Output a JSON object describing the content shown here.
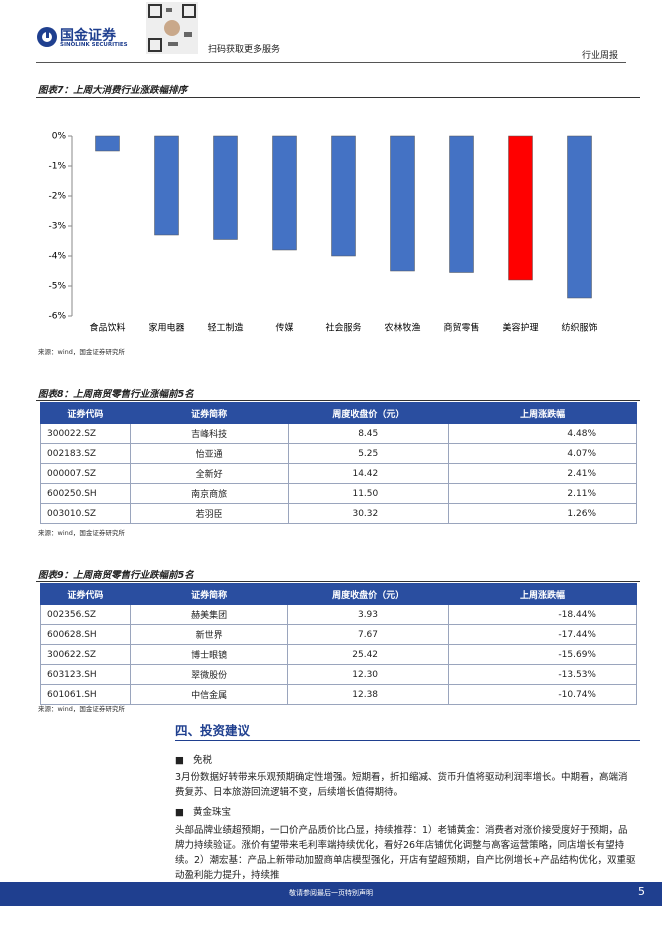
{
  "header": {
    "logo_cn": "国金证券",
    "logo_en": "SINOLINK SECURITIES",
    "qr_text": "扫码获取更多服务",
    "section": "行业周报"
  },
  "chart_data": {
    "type": "bar",
    "title": "图表7：上周大消费行业涨跌幅排序",
    "categories": [
      "食品饮料",
      "家用电器",
      "轻工制造",
      "传媒",
      "社会服务",
      "农林牧渔",
      "商贸零售",
      "美容护理",
      "纺织服饰"
    ],
    "values": [
      -0.5,
      -3.3,
      -3.45,
      -3.8,
      -4.0,
      -4.5,
      -4.55,
      -4.8,
      -5.4
    ],
    "colors": [
      "#4472c4",
      "#4472c4",
      "#4472c4",
      "#4472c4",
      "#4472c4",
      "#4472c4",
      "#4472c4",
      "#ff0000",
      "#4472c4"
    ],
    "ylim": [
      -6,
      0
    ],
    "yticks": [
      {
        "value": 0,
        "label": "0%"
      },
      {
        "value": -1,
        "label": "-1%"
      },
      {
        "value": -2,
        "label": "-2%"
      },
      {
        "value": -3,
        "label": "-3%"
      },
      {
        "value": -4,
        "label": "-4%"
      },
      {
        "value": -5,
        "label": "-5%"
      },
      {
        "value": -6,
        "label": "-6%"
      }
    ],
    "source": "来源：wind，国金证券研究所"
  },
  "table8": {
    "title": "图表8：上周商贸零售行业涨幅前5名",
    "columns": [
      "证券代码",
      "证券简称",
      "周度收盘价（元）",
      "上周涨跌幅"
    ],
    "rows": [
      [
        "300022.SZ",
        "吉峰科技",
        "8.45",
        "4.48%"
      ],
      [
        "002183.SZ",
        "怡亚通",
        "5.25",
        "4.07%"
      ],
      [
        "000007.SZ",
        "全新好",
        "14.42",
        "2.41%"
      ],
      [
        "600250.SH",
        "南京商旅",
        "11.50",
        "2.11%"
      ],
      [
        "003010.SZ",
        "若羽臣",
        "30.32",
        "1.26%"
      ]
    ],
    "source": "来源：wind，国金证券研究所"
  },
  "table9": {
    "title": "图表9：上周商贸零售行业跌幅前5名",
    "columns": [
      "证券代码",
      "证券简称",
      "周度收盘价（元）",
      "上周涨跌幅"
    ],
    "rows": [
      [
        "002356.SZ",
        "赫美集团",
        "3.93",
        "-18.44%"
      ],
      [
        "600628.SH",
        "新世界",
        "7.67",
        "-17.44%"
      ],
      [
        "300622.SZ",
        "博士眼镜",
        "25.42",
        "-15.69%"
      ],
      [
        "603123.SH",
        "翠微股份",
        "12.30",
        "-13.53%"
      ],
      [
        "601061.SH",
        "中信金属",
        "12.38",
        "-10.74%"
      ]
    ],
    "source": "来源：wind，国金证券研究所"
  },
  "section": {
    "heading": "四、投资建议",
    "items": [
      {
        "title": "免税",
        "text": "3月份数据好转带来乐观预期确定性增强。短期看，折扣缩减、货币升值将驱动利润率增长。中期看，高端消费复苏、日本旅游回流逻辑不变，后续增长值得期待。"
      },
      {
        "title": "黄金珠宝",
        "text": "头部品牌业绩超预期，一口价产品质价比凸显，持续推荐：1）老铺黄金：消费者对涨价接受度好于预期，品牌力持续验证。涨价有望带来毛利率端持续优化，看好26年店铺优化调整与高客运营策略，同店增长有望持续。2）潮宏基：产品上新带动加盟商单店模型强化，开店有望超预期，自产比例增长+产品结构优化，双重驱动盈利能力提升，持续推"
      }
    ]
  },
  "footer": {
    "disclaimer": "敬请参阅最后一页特别声明",
    "page_number": "5"
  }
}
